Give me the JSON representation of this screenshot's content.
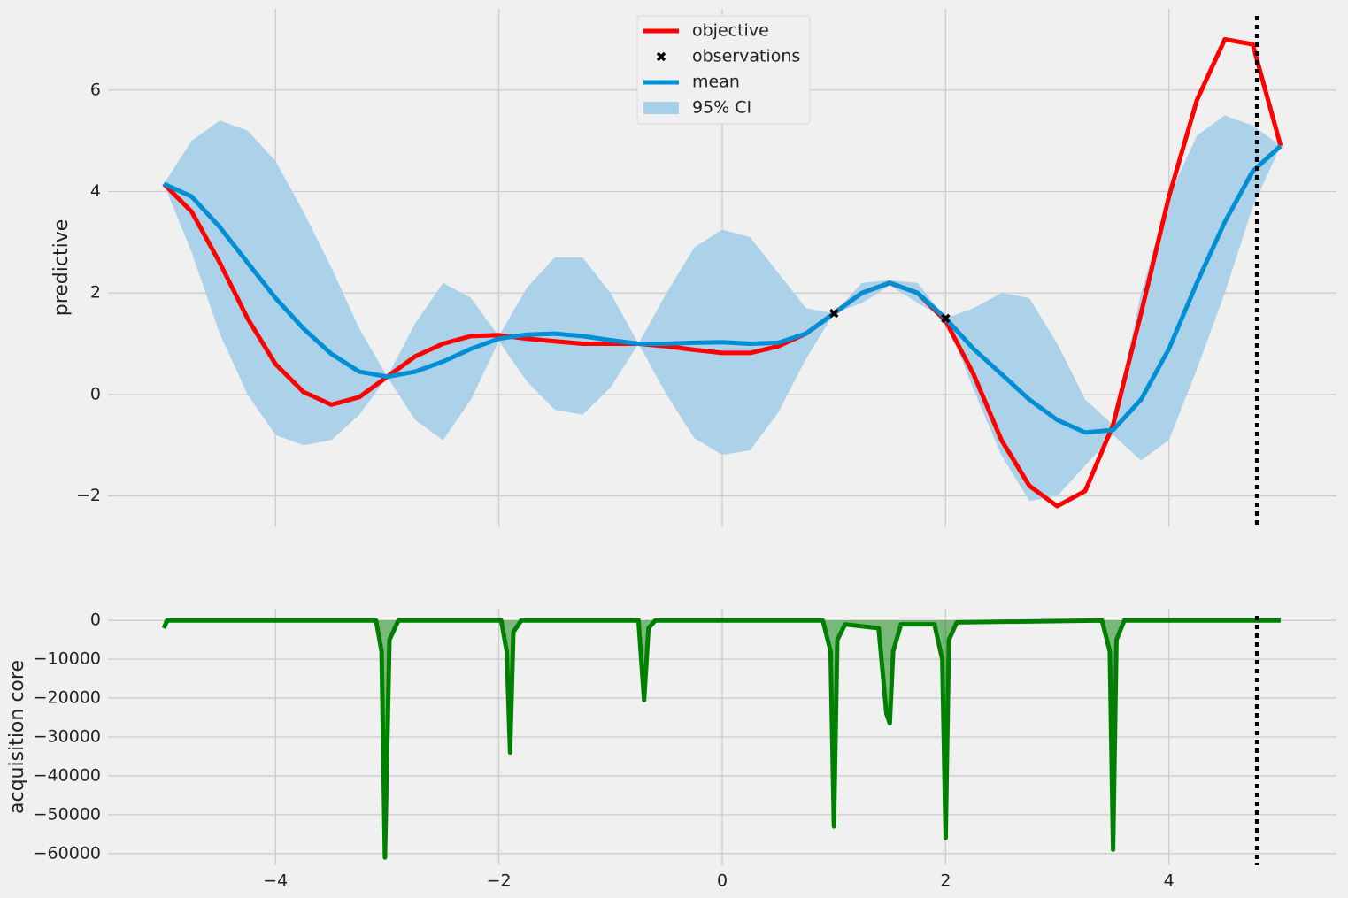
{
  "chart_data": [
    {
      "type": "line",
      "ylabel": "predictive",
      "grid": true,
      "legend": "upper center",
      "xlim": [
        -5.5,
        5.5
      ],
      "ylim": [
        -2.6,
        7.6
      ],
      "xtick_labels": false,
      "xticks": [
        -4,
        -2,
        0,
        2,
        4
      ],
      "yticks": [
        {
          "value": -2,
          "label": "−2"
        },
        0,
        2,
        4,
        6
      ],
      "vline": 4.79,
      "x": [
        -5,
        -4.75,
        -4.5,
        -4.25,
        -4,
        -3.75,
        -3.5,
        -3.25,
        -3,
        -2.75,
        -2.5,
        -2.25,
        -2,
        -1.75,
        -1.5,
        -1.25,
        -1,
        -0.75,
        -0.5,
        -0.25,
        0,
        0.25,
        0.5,
        0.75,
        1,
        1.25,
        1.5,
        1.75,
        2,
        2.25,
        2.5,
        2.75,
        3,
        3.25,
        3.5,
        3.75,
        4,
        4.25,
        4.5,
        4.75,
        5
      ],
      "series": [
        {
          "name": "objective",
          "type": "line",
          "color": "#ff0000",
          "values": [
            4.15,
            3.6,
            2.6,
            1.5,
            0.6,
            0.05,
            -0.2,
            -0.05,
            0.35,
            0.75,
            1.0,
            1.15,
            1.17,
            1.1,
            1.05,
            1.0,
            1.0,
            1.0,
            0.95,
            0.88,
            0.82,
            0.82,
            0.95,
            1.2,
            1.6,
            2.0,
            2.2,
            2.0,
            1.45,
            0.4,
            -0.9,
            -1.8,
            -2.2,
            -1.9,
            -0.6,
            1.6,
            3.9,
            5.8,
            7.0,
            6.9,
            4.9
          ]
        },
        {
          "name": "observations",
          "type": "scatter",
          "color": "#000000",
          "x": [
            1,
            2
          ],
          "values": [
            1.6,
            1.5
          ]
        },
        {
          "name": "mean",
          "type": "line",
          "color": "#008fd5",
          "values": [
            4.15,
            3.9,
            3.3,
            2.6,
            1.9,
            1.3,
            0.8,
            0.45,
            0.35,
            0.45,
            0.65,
            0.9,
            1.1,
            1.18,
            1.2,
            1.15,
            1.07,
            1.0,
            1.0,
            1.02,
            1.03,
            1.0,
            1.02,
            1.2,
            1.6,
            2.0,
            2.2,
            2.0,
            1.5,
            0.9,
            0.4,
            -0.1,
            -0.5,
            -0.75,
            -0.7,
            -0.1,
            0.9,
            2.2,
            3.4,
            4.4,
            4.9
          ]
        },
        {
          "name": "95% CI",
          "type": "band",
          "color": "#a6d0e8",
          "upper": [
            4.15,
            5.0,
            5.4,
            5.2,
            4.6,
            3.6,
            2.5,
            1.3,
            0.35,
            1.4,
            2.2,
            1.9,
            1.15,
            2.1,
            2.7,
            2.7,
            2.0,
            1.0,
            2.0,
            2.9,
            3.25,
            3.1,
            2.4,
            1.7,
            1.6,
            2.2,
            2.25,
            2.2,
            1.5,
            1.7,
            2.0,
            1.9,
            1.0,
            -0.1,
            -0.6,
            2.0,
            3.9,
            5.1,
            5.5,
            5.3,
            4.9
          ],
          "lower": [
            4.15,
            2.8,
            1.2,
            0.0,
            -0.8,
            -1.0,
            -0.9,
            -0.4,
            0.35,
            -0.5,
            -0.9,
            -0.1,
            1.05,
            0.26,
            -0.3,
            -0.4,
            0.14,
            1.0,
            0.0,
            -0.86,
            -1.19,
            -1.1,
            -0.36,
            0.7,
            1.6,
            1.8,
            2.15,
            1.8,
            1.5,
            0.1,
            -1.2,
            -2.1,
            -2.0,
            -1.4,
            -0.8,
            -1.3,
            -0.9,
            0.5,
            2.0,
            3.7,
            4.9
          ]
        }
      ]
    },
    {
      "type": "line",
      "ylabel": "acquisition core",
      "grid": true,
      "color": "#008000",
      "fill": true,
      "xlim": [
        -5.5,
        5.5
      ],
      "ylim": [
        -63000,
        3000
      ],
      "xticks": [
        {
          "value": -4,
          "label": "−4"
        },
        {
          "value": -2,
          "label": "−2"
        },
        0,
        2,
        4
      ],
      "yticks": [
        {
          "value": -60000,
          "label": "−60000"
        },
        {
          "value": -50000,
          "label": "−50000"
        },
        {
          "value": -40000,
          "label": "−40000"
        },
        {
          "value": -30000,
          "label": "−30000"
        },
        {
          "value": -20000,
          "label": "−20000"
        },
        {
          "value": -10000,
          "label": "−10000"
        },
        0
      ],
      "vline": 4.79,
      "x": [
        -5,
        -4.97,
        -3.1,
        -3.05,
        -3.02,
        -2.98,
        -2.9,
        -1.98,
        -1.93,
        -1.9,
        -1.87,
        -1.8,
        -0.75,
        -0.7,
        -0.66,
        -0.6,
        0.9,
        0.97,
        1.0,
        1.03,
        1.1,
        1.4,
        1.47,
        1.5,
        1.53,
        1.6,
        1.9,
        1.97,
        2.0,
        2.03,
        2.1,
        3.4,
        3.47,
        3.5,
        3.53,
        3.6,
        5
      ],
      "values": [
        -2000,
        0,
        0,
        -8000,
        -61000,
        -5000,
        0,
        0,
        -8000,
        -34000,
        -3000,
        0,
        0,
        -20500,
        -2000,
        0,
        0,
        -8000,
        -53000,
        -5000,
        -1000,
        -2000,
        -24000,
        -26500,
        -8000,
        -1000,
        -1000,
        -10000,
        -56000,
        -5000,
        -500,
        0,
        -8000,
        -59000,
        -5000,
        0,
        0
      ]
    }
  ]
}
